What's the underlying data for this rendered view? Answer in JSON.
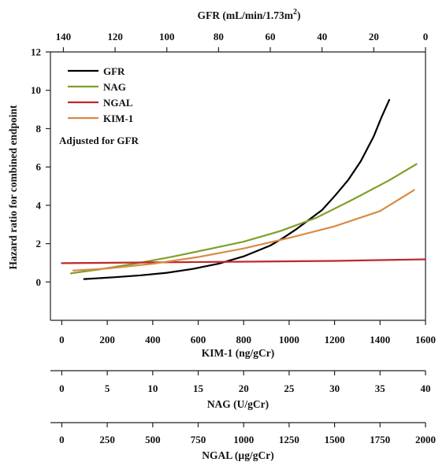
{
  "chart_data": {
    "type": "line",
    "ylabel": "Hazard ratio for combined endpoint",
    "ylim": [
      -2,
      12
    ],
    "yticks": [
      "12",
      "10",
      "8",
      "6",
      "4",
      "2",
      "0"
    ],
    "top_axis": {
      "label_main": "GFR (mL/min/1.73m",
      "label_sup": "2",
      "label_end": ")",
      "range": [
        145,
        0
      ],
      "ticks": [
        "140",
        "120",
        "100",
        "80",
        "60",
        "40",
        "20",
        "0"
      ]
    },
    "bottom_axes": [
      {
        "label": "KIM-1 (ng/gCr)",
        "range": [
          -50,
          1600
        ],
        "ticks": [
          "0",
          "200",
          "400",
          "600",
          "800",
          "1000",
          "1200",
          "1400",
          "1600"
        ]
      },
      {
        "label": "NAG (U/gCr)",
        "range": [
          -1.25,
          40
        ],
        "ticks": [
          "0",
          "5",
          "10",
          "15",
          "20",
          "25",
          "30",
          "35",
          "40"
        ]
      },
      {
        "label": "NGAL (µg/gCr)",
        "range": [
          -62.5,
          2000
        ],
        "ticks": [
          "0",
          "250",
          "500",
          "750",
          "1000",
          "1250",
          "1500",
          "1750",
          "2000"
        ]
      }
    ],
    "annotation": "Adjusted for GFR",
    "legend_position": "top-left",
    "series": [
      {
        "name": "GFR",
        "color": "#000000",
        "axis": "GFR",
        "x": [
          132,
          120,
          110,
          100,
          90,
          80,
          70,
          60,
          55,
          50,
          45,
          40,
          35,
          30,
          25,
          20,
          17,
          14
        ],
        "y": [
          0.15,
          0.25,
          0.35,
          0.48,
          0.68,
          0.95,
          1.35,
          1.9,
          2.3,
          2.75,
          3.25,
          3.75,
          4.5,
          5.3,
          6.3,
          7.6,
          8.6,
          9.5
        ]
      },
      {
        "name": "NAG",
        "color": "#7f9f2a",
        "axis": "NAG",
        "x": [
          1,
          4,
          8,
          12,
          16,
          20,
          24,
          28,
          32,
          36,
          39
        ],
        "y": [
          0.45,
          0.65,
          0.95,
          1.3,
          1.7,
          2.1,
          2.65,
          3.35,
          4.3,
          5.3,
          6.15
        ]
      },
      {
        "name": "NGAL",
        "color": "#c0282a",
        "axis": "NGAL",
        "x": [
          0,
          500,
          1000,
          1500,
          2000
        ],
        "y": [
          0.98,
          1.02,
          1.06,
          1.1,
          1.18
        ]
      },
      {
        "name": "KIM-1",
        "color": "#d98b44",
        "axis": "KIM-1",
        "x": [
          50,
          200,
          400,
          600,
          800,
          1000,
          1200,
          1400,
          1550
        ],
        "y": [
          0.6,
          0.7,
          0.95,
          1.3,
          1.75,
          2.3,
          2.9,
          3.7,
          4.8
        ]
      }
    ]
  }
}
